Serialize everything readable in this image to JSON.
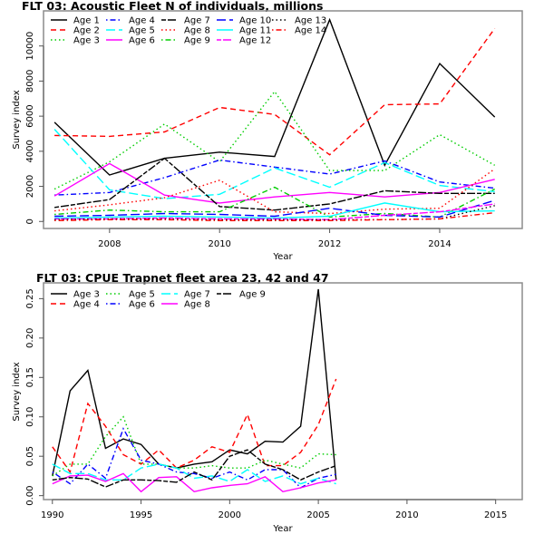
{
  "chart_data": [
    {
      "type": "line",
      "title": "FLT 03: Acoustic Fleet   N of individuals, millions",
      "xlabel": "Year",
      "ylabel": "Survey index",
      "xlim": [
        2006.8,
        2015.5
      ],
      "ylim": [
        -400,
        12000
      ],
      "xticks": [
        2008,
        2010,
        2012,
        2014
      ],
      "yticks": [
        0,
        2000,
        4000,
        6000,
        8000,
        10000
      ],
      "legend_position": "top-left",
      "legend_columns": 5,
      "x": [
        2007,
        2008,
        2009,
        2010,
        2011,
        2012,
        2013,
        2014,
        2015
      ],
      "series": [
        {
          "name": "Age 1",
          "color": "#000000",
          "dash": "solid",
          "values": [
            5650,
            2650,
            3600,
            3950,
            3700,
            11500,
            3200,
            9000,
            5950
          ]
        },
        {
          "name": "Age 2",
          "color": "#FF0000",
          "dash": "dashed",
          "values": [
            4900,
            4850,
            5100,
            6500,
            6100,
            3800,
            6650,
            6700,
            11000
          ]
        },
        {
          "name": "Age 3",
          "color": "#00CD00",
          "dash": "dotted",
          "values": [
            1850,
            3400,
            5550,
            3400,
            7400,
            2900,
            2900,
            4950,
            3200
          ]
        },
        {
          "name": "Age 4",
          "color": "#0000FF",
          "dash": "dotdash",
          "values": [
            1500,
            1650,
            2500,
            3500,
            3100,
            2700,
            3450,
            2250,
            1900
          ]
        },
        {
          "name": "Age 5",
          "color": "#00FFFF",
          "dash": "longdash",
          "values": [
            5250,
            1800,
            1300,
            1550,
            3050,
            1950,
            3350,
            2050,
            1700
          ]
        },
        {
          "name": "Age 6",
          "color": "#FF00FF",
          "dash": "solid",
          "values": [
            1450,
            3300,
            1500,
            1050,
            1400,
            1650,
            1400,
            1650,
            2400
          ]
        },
        {
          "name": "Age 7",
          "color": "#000000",
          "dash": "twodash",
          "values": [
            800,
            1250,
            3600,
            850,
            650,
            1000,
            1750,
            1600,
            1600
          ]
        },
        {
          "name": "Age 8",
          "color": "#FF0000",
          "dash": "dotted",
          "values": [
            600,
            950,
            1350,
            2350,
            550,
            450,
            700,
            750,
            3000
          ]
        },
        {
          "name": "Age 9",
          "color": "#00CD00",
          "dash": "dotdash",
          "values": [
            400,
            650,
            550,
            550,
            1950,
            250,
            450,
            250,
            1850
          ]
        },
        {
          "name": "Age 10",
          "color": "#0000FF",
          "dash": "longdash",
          "values": [
            300,
            350,
            450,
            400,
            300,
            750,
            350,
            250,
            1200
          ]
        },
        {
          "name": "Age 11",
          "color": "#00FFFF",
          "dash": "solid",
          "values": [
            200,
            250,
            300,
            250,
            200,
            300,
            1050,
            550,
            600
          ]
        },
        {
          "name": "Age 12",
          "color": "#FF00FF",
          "dash": "twodash",
          "values": [
            150,
            150,
            200,
            150,
            150,
            100,
            350,
            550,
            1000
          ]
        },
        {
          "name": "Age 13",
          "color": "#000000",
          "dash": "dotted",
          "values": [
            100,
            150,
            150,
            100,
            100,
            100,
            100,
            150,
            900
          ]
        },
        {
          "name": "Age 14",
          "color": "#FF0000",
          "dash": "dotdash",
          "values": [
            50,
            100,
            100,
            50,
            50,
            50,
            100,
            150,
            500
          ]
        }
      ]
    },
    {
      "type": "line",
      "title": "FLT 03: CPUE Trapnet fleet area 23, 42 and 47",
      "xlabel": "Year",
      "ylabel": "Survey index",
      "xlim": [
        1989.5,
        2016.5
      ],
      "ylim": [
        -0.005,
        0.27
      ],
      "xticks": [
        1990,
        1995,
        2000,
        2005,
        2010,
        2015
      ],
      "yticks": [
        0.0,
        0.05,
        0.1,
        0.15,
        0.2,
        0.25
      ],
      "ytick_labels": [
        "0.00",
        "0.05",
        "0.10",
        "0.15",
        "0.20",
        "0.25"
      ],
      "legend_position": "top-left",
      "legend_columns": 4,
      "x": [
        1990,
        1991,
        1992,
        1993,
        1994,
        1995,
        1996,
        1997,
        1998,
        1999,
        2000,
        2001,
        2002,
        2003,
        2004,
        2005,
        2006
      ],
      "series": [
        {
          "name": "Age 3",
          "color": "#000000",
          "dash": "solid",
          "values": [
            0.025,
            0.133,
            0.159,
            0.06,
            0.072,
            0.065,
            0.04,
            0.035,
            0.04,
            0.043,
            0.058,
            0.053,
            0.069,
            0.068,
            0.088,
            0.262,
            0.02
          ]
        },
        {
          "name": "Age 4",
          "color": "#FF0000",
          "dash": "dashed",
          "values": [
            0.062,
            0.03,
            0.117,
            0.088,
            0.052,
            0.04,
            0.058,
            0.035,
            0.045,
            0.062,
            0.055,
            0.103,
            0.038,
            0.038,
            0.055,
            0.09,
            0.148
          ]
        },
        {
          "name": "Age 5",
          "color": "#00CD00",
          "dash": "dotted",
          "values": [
            0.025,
            0.04,
            0.04,
            0.075,
            0.1,
            0.04,
            0.04,
            0.035,
            0.035,
            0.038,
            0.035,
            0.035,
            0.045,
            0.04,
            0.035,
            0.053,
            0.052
          ]
        },
        {
          "name": "Age 6",
          "color": "#0000FF",
          "dash": "dotdash",
          "values": [
            0.03,
            0.015,
            0.04,
            0.022,
            0.085,
            0.045,
            0.04,
            0.03,
            0.028,
            0.022,
            0.03,
            0.02,
            0.033,
            0.033,
            0.01,
            0.022,
            0.027
          ]
        },
        {
          "name": "Age 7",
          "color": "#00FFFF",
          "dash": "longdash",
          "values": [
            0.04,
            0.028,
            0.028,
            0.02,
            0.02,
            0.035,
            0.04,
            0.035,
            0.022,
            0.025,
            0.018,
            0.033,
            0.018,
            0.025,
            0.015,
            0.022,
            0.015
          ]
        },
        {
          "name": "Age 8",
          "color": "#FF00FF",
          "dash": "solid",
          "values": [
            0.015,
            0.025,
            0.026,
            0.018,
            0.028,
            0.005,
            0.023,
            0.024,
            0.005,
            0.01,
            0.013,
            0.015,
            0.024,
            0.005,
            0.01,
            0.016,
            0.02
          ]
        },
        {
          "name": "Age 9",
          "color": "#000000",
          "dash": "twodash",
          "values": [
            0.02,
            0.023,
            0.021,
            0.011,
            0.02,
            0.02,
            0.019,
            0.017,
            0.03,
            0.02,
            0.05,
            0.058,
            0.04,
            0.033,
            0.02,
            0.03,
            0.038
          ]
        }
      ]
    }
  ]
}
